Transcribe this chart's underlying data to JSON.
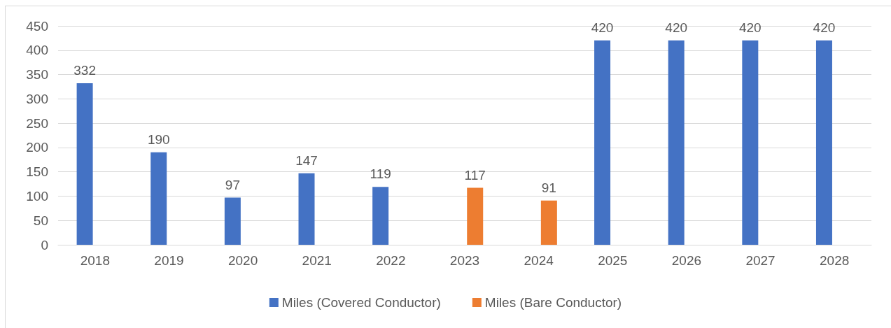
{
  "chart_data": {
    "type": "bar",
    "categories": [
      "2018",
      "2019",
      "2020",
      "2021",
      "2022",
      "2023",
      "2024",
      "2025",
      "2026",
      "2027",
      "2028"
    ],
    "series": [
      {
        "name": "Miles (Covered Conductor)",
        "color": "#4472c4",
        "values": [
          332,
          190,
          97,
          147,
          119,
          null,
          null,
          420,
          420,
          420,
          420
        ]
      },
      {
        "name": "Miles (Bare Conductor)",
        "color": "#ed7d31",
        "values": [
          null,
          null,
          null,
          null,
          null,
          117,
          91,
          null,
          null,
          null,
          null
        ]
      }
    ],
    "ylim": [
      0,
      450
    ],
    "yticks": [
      0,
      50,
      100,
      150,
      200,
      250,
      300,
      350,
      400,
      450
    ],
    "grid": "y",
    "legend": "bottom",
    "data_labels": true
  }
}
